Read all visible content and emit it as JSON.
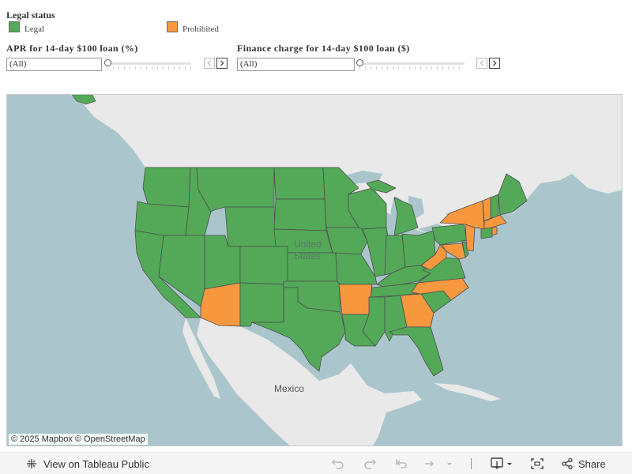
{
  "legend": {
    "title": "Legal status",
    "items": [
      {
        "label": "Legal",
        "color": "#53a957"
      },
      {
        "label": "Prohibited",
        "color": "#f7973e"
      }
    ]
  },
  "filters": {
    "apr": {
      "title": "APR for 14-day $100 loan (%)",
      "value": "(All)"
    },
    "finance": {
      "title": "Finance charge for 14-day $100 loan ($)",
      "value": "(All)"
    }
  },
  "map": {
    "attribution": "© 2025 Mapbox  © OpenStreetMap",
    "place_labels": {
      "united_states_line1": "United",
      "united_states_line2": "States",
      "mexico": "Mexico"
    },
    "colors": {
      "water": "#aac6cc",
      "land": "#e9e9e9",
      "legal": "#53a957",
      "prohibited": "#f7973e",
      "border": "#4f4f4f"
    },
    "prohibited_states": [
      "AZ",
      "AR",
      "GA",
      "NC",
      "WV",
      "MD",
      "PA(part)",
      "NJ",
      "NY",
      "VT",
      "MA",
      "CT"
    ]
  },
  "toolbar": {
    "view_label": "View on Tableau Public",
    "share_label": "Share"
  }
}
